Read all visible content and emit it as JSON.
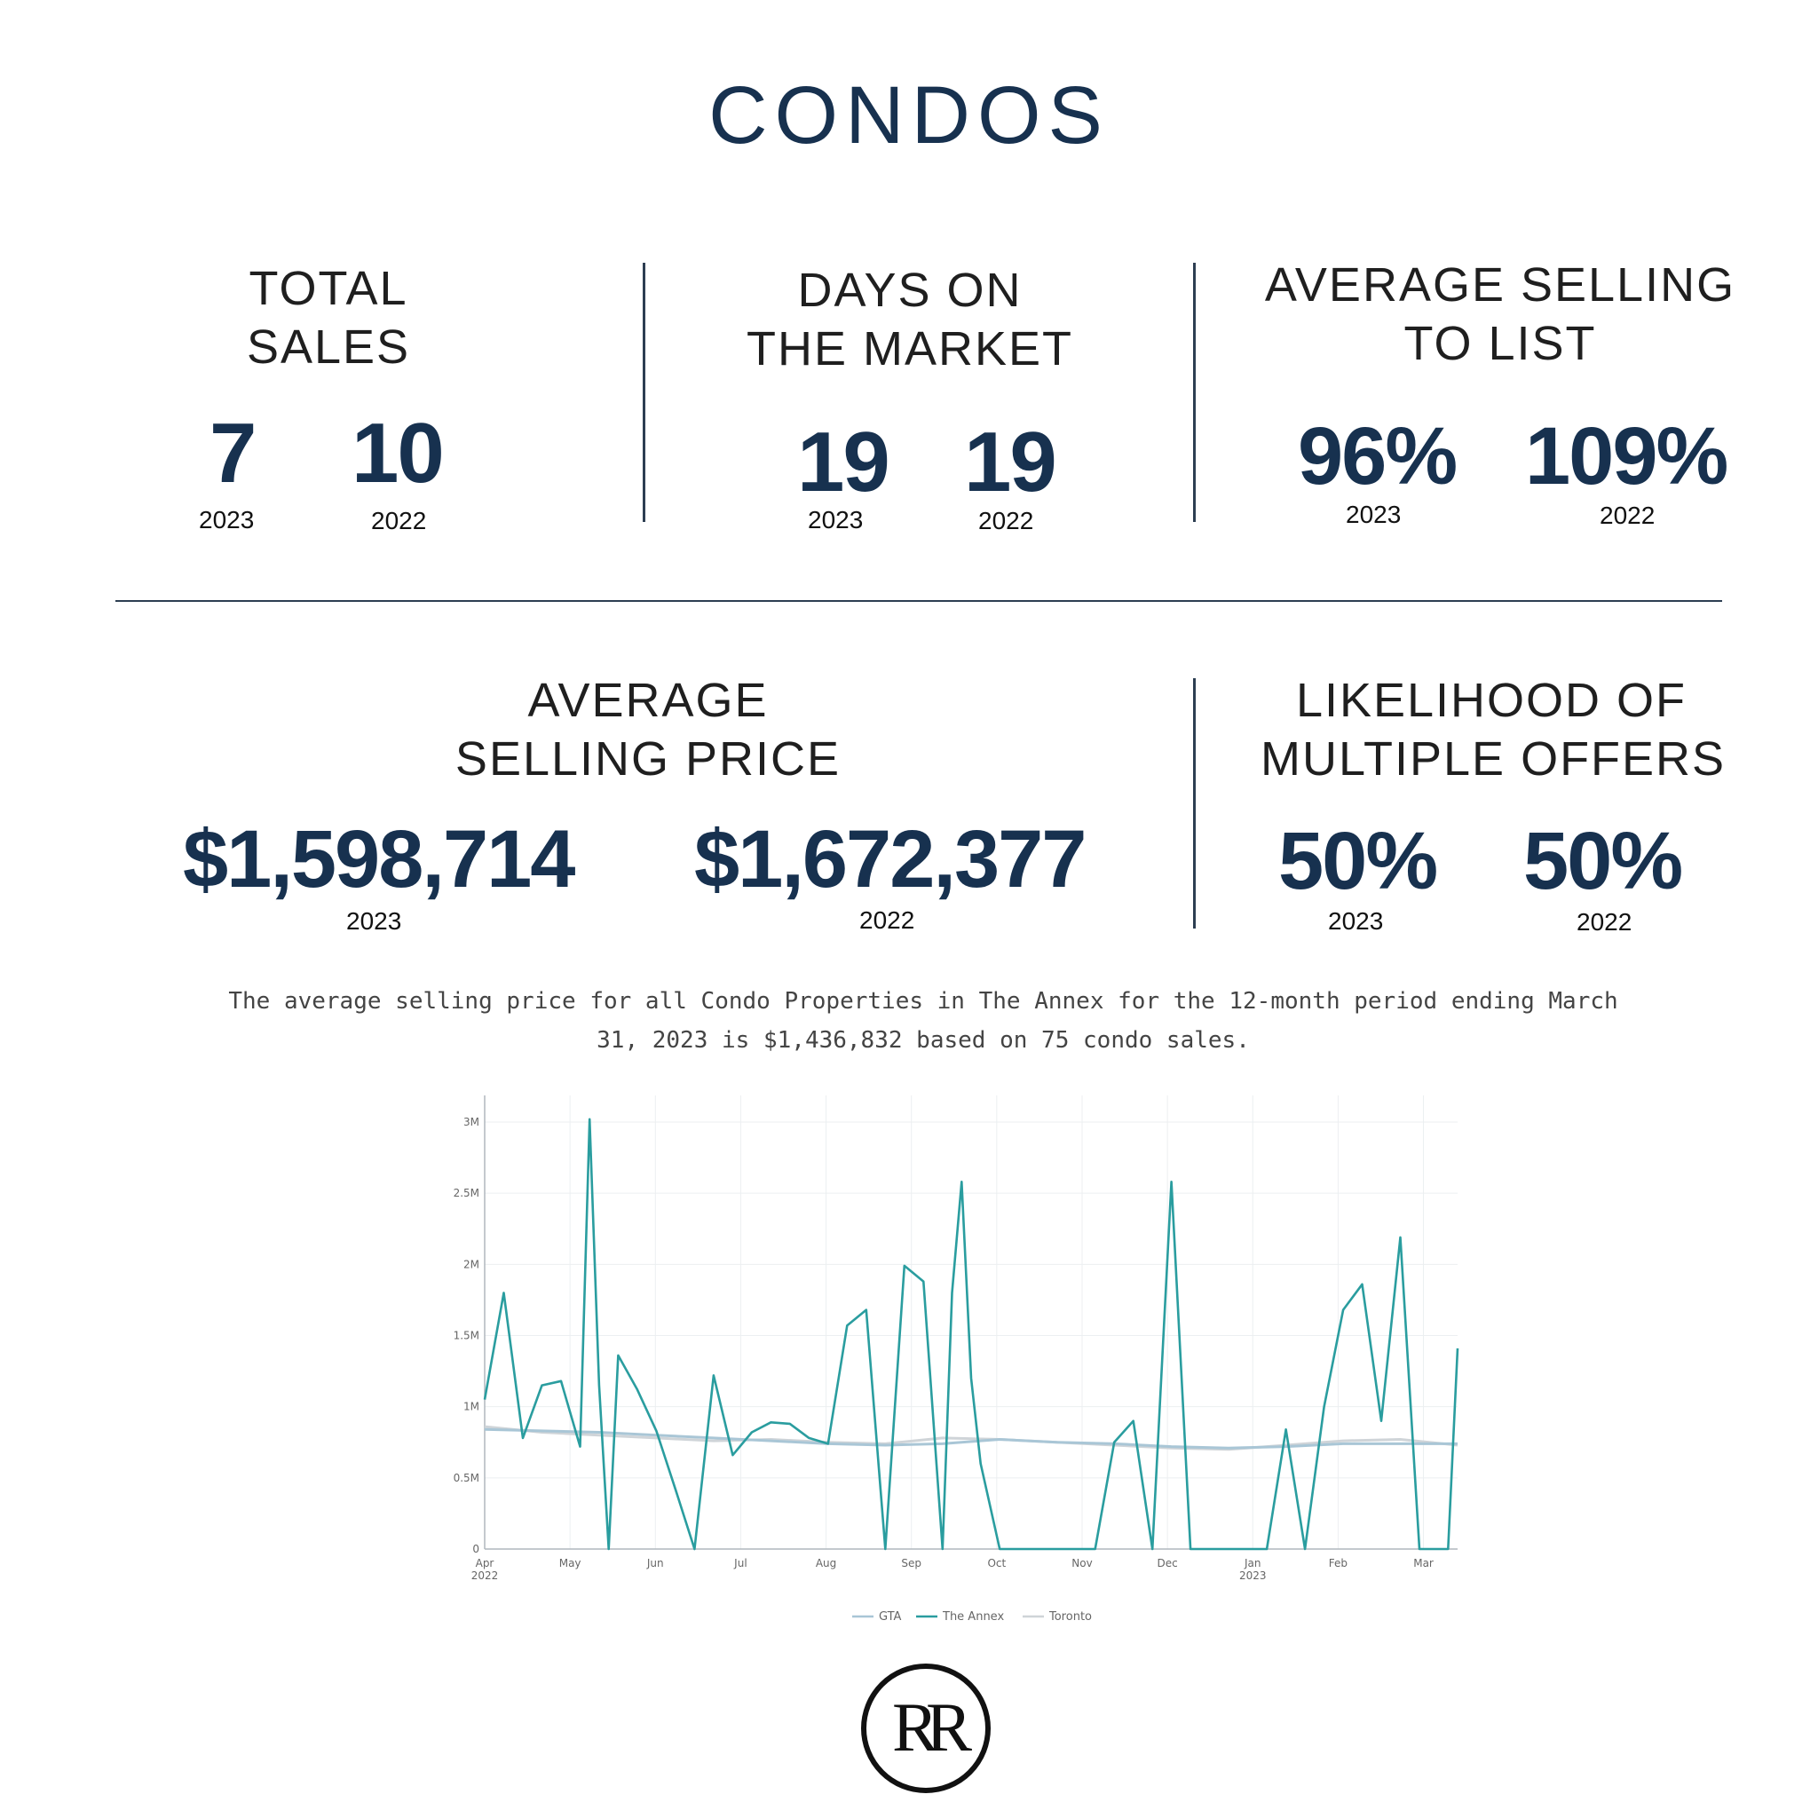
{
  "title": "CONDOS",
  "stats": {
    "total_sales": {
      "label": [
        "TOTAL",
        "SALES"
      ],
      "v2023": "7",
      "v2022": "10",
      "y2023": "2023",
      "y2022": "2022"
    },
    "days_on_market": {
      "label": [
        "DAYS ON",
        "THE MARKET"
      ],
      "v2023": "19",
      "v2022": "19",
      "y2023": "2023",
      "y2022": "2022"
    },
    "avg_sell_to_list": {
      "label": [
        "AVERAGE SELLING",
        "TO LIST"
      ],
      "v2023": "96%",
      "v2022": "109%",
      "y2023": "2023",
      "y2022": "2022"
    },
    "avg_selling_price": {
      "label": [
        "AVERAGE",
        "SELLING PRICE"
      ],
      "v2023": "$1,598,714",
      "v2022": "$1,672,377",
      "y2023": "2023",
      "y2022": "2022"
    },
    "multiple_offers": {
      "label": [
        "LIKELIHOOD OF",
        "MULTIPLE OFFERS"
      ],
      "v2023": "50%",
      "v2022": "50%",
      "y2023": "2023",
      "y2022": "2022"
    }
  },
  "caption": [
    "The average selling price for all Condo Properties in The Annex for the 12-month period ending March",
    "31, 2023 is $1,436,832 based on 75 condo sales."
  ],
  "logo_text": "RR",
  "colors": {
    "navy": "#17314f",
    "annex": "#2a9d9f",
    "gta": "#a9c6d6",
    "toronto": "#cfd4d8"
  },
  "chart_data": {
    "type": "line",
    "x_tick_labels": [
      [
        "Apr",
        "2022"
      ],
      [
        "May",
        ""
      ],
      [
        "Jun",
        ""
      ],
      [
        "Jul",
        ""
      ],
      [
        "Aug",
        ""
      ],
      [
        "Sep",
        ""
      ],
      [
        "Oct",
        ""
      ],
      [
        "Nov",
        ""
      ],
      [
        "Dec",
        ""
      ],
      [
        "Jan",
        "2023"
      ],
      [
        "Feb",
        ""
      ],
      [
        "Mar",
        ""
      ]
    ],
    "y_ticks": [
      0,
      500000,
      1000000,
      1500000,
      2000000,
      2500000,
      3000000
    ],
    "y_tick_labels": [
      "0",
      "0.5M",
      "1M",
      "1.5M",
      "2M",
      "2.5M",
      "3M"
    ],
    "ylim": [
      0,
      3000000
    ],
    "x_range_weeks": [
      0,
      51
    ],
    "grid": true,
    "legend_position": "bottom-center",
    "series": [
      {
        "name": "GTA",
        "weeks": [
          0,
          3,
          6,
          9,
          12,
          15,
          18,
          21,
          24,
          27,
          30,
          33,
          36,
          39,
          42,
          45,
          48,
          51
        ],
        "values": [
          840000,
          830000,
          820000,
          800000,
          780000,
          760000,
          740000,
          730000,
          740000,
          770000,
          750000,
          740000,
          720000,
          710000,
          720000,
          740000,
          740000,
          740000
        ]
      },
      {
        "name": "The Annex",
        "weeks": [
          0,
          1,
          2,
          3,
          4,
          5,
          5.5,
          6,
          6.5,
          7,
          8,
          9,
          10,
          11,
          12,
          13,
          14,
          15,
          16,
          17,
          18,
          19,
          20,
          21,
          22,
          23,
          24,
          24.5,
          25,
          25.5,
          26,
          27,
          28,
          29,
          30,
          31,
          32,
          33,
          34,
          35,
          36,
          37,
          38,
          39,
          40,
          41,
          42,
          43,
          44,
          45,
          46,
          47,
          48,
          49,
          50,
          50.5,
          51
        ],
        "values": [
          1050000,
          1800000,
          780000,
          1150000,
          1180000,
          720000,
          3020000,
          1150000,
          0,
          1360000,
          1120000,
          830000,
          420000,
          0,
          1220000,
          660000,
          820000,
          890000,
          880000,
          780000,
          740000,
          1570000,
          1680000,
          0,
          1990000,
          1880000,
          0,
          1800000,
          2580000,
          1200000,
          600000,
          0,
          0,
          0,
          0,
          0,
          0,
          750000,
          900000,
          0,
          2580000,
          0,
          0,
          0,
          0,
          0,
          840000,
          0,
          1000000,
          1680000,
          1860000,
          900000,
          2190000,
          0,
          0,
          0,
          1410000
        ]
      },
      {
        "name": "Toronto",
        "weeks": [
          0,
          3,
          6,
          9,
          12,
          15,
          18,
          21,
          24,
          27,
          30,
          33,
          36,
          39,
          42,
          45,
          48,
          51
        ],
        "values": [
          860000,
          820000,
          800000,
          780000,
          760000,
          770000,
          750000,
          740000,
          780000,
          770000,
          750000,
          730000,
          710000,
          700000,
          730000,
          760000,
          770000,
          730000
        ]
      }
    ]
  }
}
